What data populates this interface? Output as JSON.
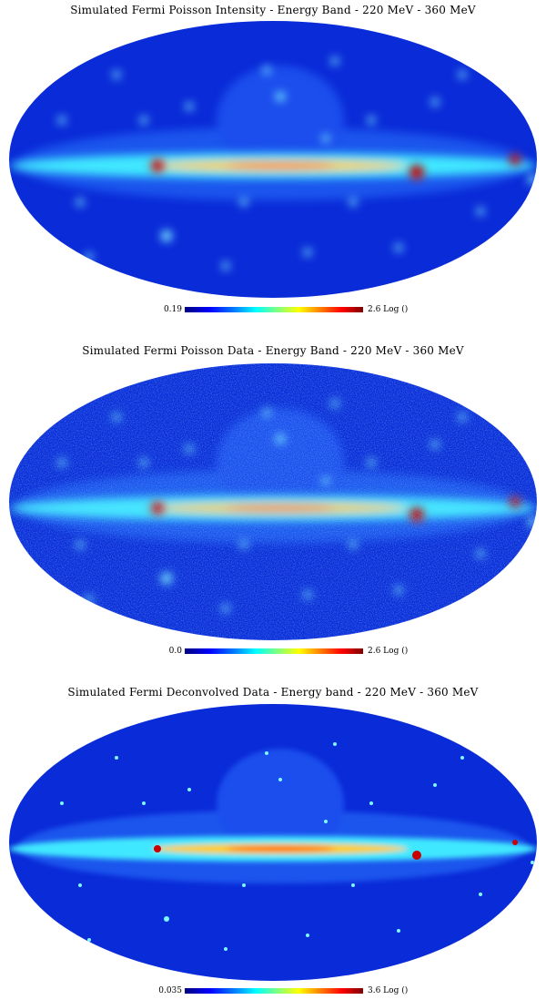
{
  "panels": [
    {
      "title": "Simulated Fermi Poisson Intensity -  Energy Band - 220 MeV - 360 MeV",
      "cbar_min": "0.19",
      "cbar_max": "2.6 Log ()",
      "style": "smooth"
    },
    {
      "title": "Simulated Fermi Poisson Data -  Energy Band - 220 MeV - 360 MeV",
      "cbar_min": "0.0",
      "cbar_max": "2.6 Log ()",
      "style": "noisy"
    },
    {
      "title": "Simulated Fermi Deconvolved Data - Energy band - 220 MeV - 360 MeV",
      "cbar_min": "0.035",
      "cbar_max": "3.6 Log ()",
      "style": "sharp"
    }
  ],
  "colors": {
    "background": "#0a2bd8",
    "plane": "#3fe8ff",
    "core": "#ffcc20",
    "hot": "#c80000"
  }
}
